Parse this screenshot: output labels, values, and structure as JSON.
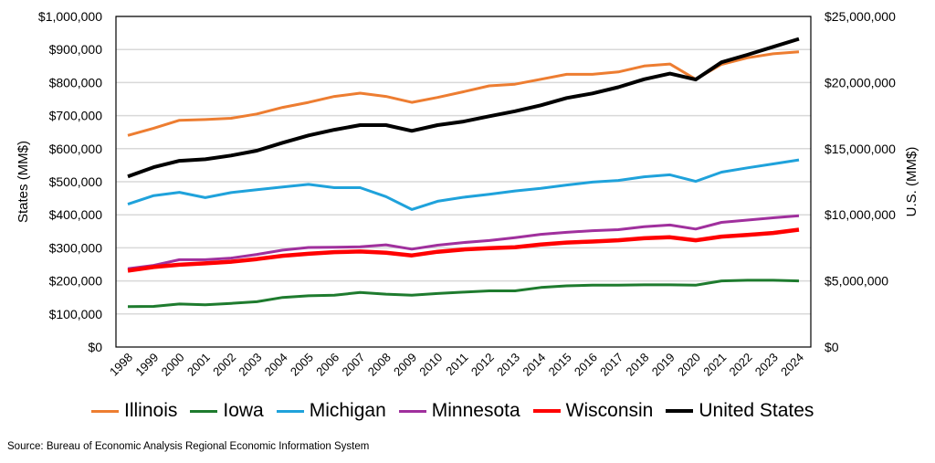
{
  "chart_data": {
    "type": "line",
    "title": "",
    "ylabel": "States (MM$)",
    "y2label": "U.S. (MM$)",
    "xlabel": "",
    "ylim": [
      0,
      1000000
    ],
    "y2lim": [
      0,
      25000000
    ],
    "yticks": [
      "$0",
      "$100,000",
      "$200,000",
      "$300,000",
      "$400,000",
      "$500,000",
      "$600,000",
      "$700,000",
      "$800,000",
      "$900,000",
      "$1,000,000"
    ],
    "y2ticks": [
      "$0",
      "$5,000,000",
      "$10,000,000",
      "$15,000,000",
      "$20,000,000",
      "$25,000,000"
    ],
    "grid": true,
    "legend_position": "bottom",
    "categories": [
      "1998",
      "1999",
      "2000",
      "2001",
      "2002",
      "2003",
      "2004",
      "2005",
      "2006",
      "2007",
      "2008",
      "2009",
      "2010",
      "2011",
      "2012",
      "2013",
      "2014",
      "2015",
      "2016",
      "2017",
      "2018",
      "2019",
      "2020",
      "2021",
      "2022",
      "2023",
      "2024"
    ],
    "series": [
      {
        "name": "Illinois",
        "axis": "left",
        "color": "#ED7D31",
        "width": 3,
        "values": [
          640000,
          662000,
          686000,
          688000,
          692000,
          705000,
          725000,
          740000,
          758000,
          768000,
          758000,
          740000,
          755000,
          772000,
          790000,
          795000,
          810000,
          825000,
          825000,
          832000,
          850000,
          856000,
          810000,
          855000,
          875000,
          887000,
          893000
        ]
      },
      {
        "name": "Iowa",
        "axis": "left",
        "color": "#1E7B2E",
        "width": 3,
        "values": [
          122000,
          123000,
          130000,
          128000,
          132000,
          137000,
          150000,
          155000,
          157000,
          165000,
          160000,
          157000,
          162000,
          166000,
          170000,
          170000,
          180000,
          185000,
          187000,
          187000,
          188000,
          188000,
          187000,
          200000,
          202000,
          202000,
          200000
        ]
      },
      {
        "name": "Michigan",
        "axis": "left",
        "color": "#1FA2DB",
        "width": 3,
        "values": [
          432000,
          458000,
          468000,
          452000,
          467000,
          476000,
          484000,
          492000,
          482000,
          482000,
          455000,
          416000,
          441000,
          453000,
          462000,
          472000,
          480000,
          490000,
          499000,
          504000,
          515000,
          521000,
          501000,
          529000,
          542000,
          554000,
          566000
        ]
      },
      {
        "name": "Minnesota",
        "axis": "left",
        "color": "#A0309D",
        "width": 3,
        "values": [
          237000,
          247000,
          264000,
          264000,
          269000,
          280000,
          293000,
          301000,
          302000,
          303000,
          309000,
          296000,
          308000,
          316000,
          322000,
          331000,
          341000,
          347000,
          352000,
          355000,
          364000,
          369000,
          357000,
          377000,
          384000,
          391000,
          397000
        ]
      },
      {
        "name": "Wisconsin",
        "axis": "left",
        "color": "#FF0000",
        "width": 4.5,
        "values": [
          231000,
          242000,
          249000,
          253000,
          258000,
          266000,
          276000,
          282000,
          287000,
          289000,
          285000,
          277000,
          288000,
          295000,
          299000,
          302000,
          310000,
          316000,
          319000,
          323000,
          329000,
          332000,
          323000,
          334000,
          339000,
          345000,
          355000
        ]
      },
      {
        "name": "United States",
        "axis": "right",
        "color": "#000000",
        "width": 4,
        "values": [
          12900000,
          13600000,
          14080000,
          14200000,
          14480000,
          14850000,
          15450000,
          16000000,
          16430000,
          16780000,
          16780000,
          16350000,
          16780000,
          17050000,
          17450000,
          17830000,
          18280000,
          18830000,
          19180000,
          19650000,
          20250000,
          20680000,
          20230000,
          21530000,
          22100000,
          22700000,
          23300000
        ]
      }
    ]
  },
  "source": "Source: Bureau of Economic Analysis Regional Economic Information System"
}
